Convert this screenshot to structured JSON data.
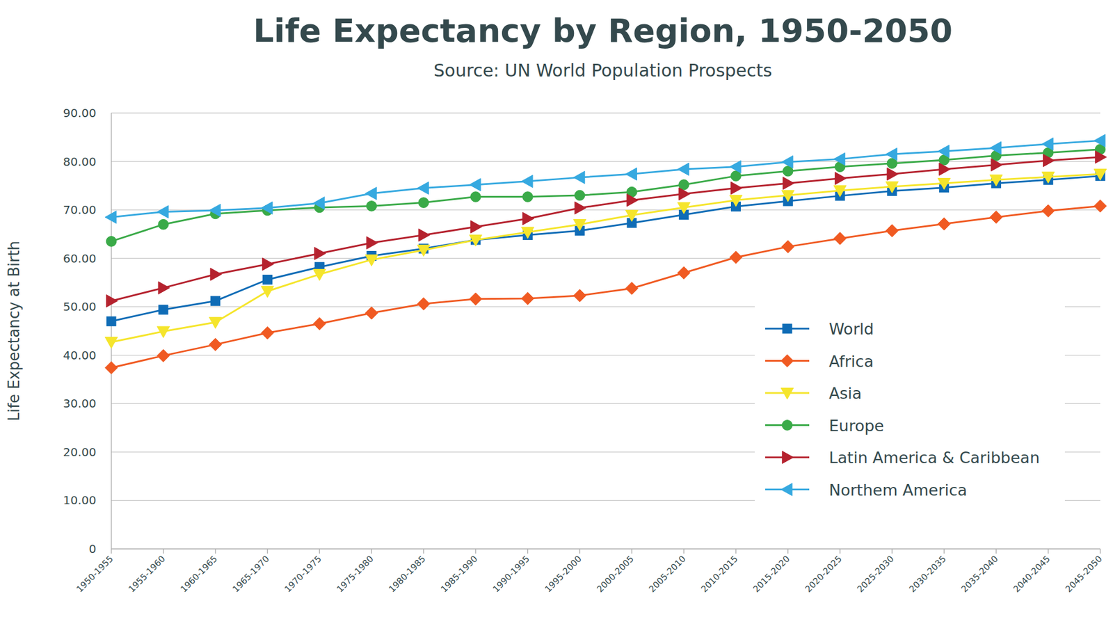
{
  "chart_data": {
    "type": "line",
    "title": "Life Expectancy by Region, 1950-2050",
    "subtitle": "Source: UN World Population Prospects",
    "y_label": "Life Expectancy at Birth",
    "categories": [
      "1950-1955",
      "1955-1960",
      "1960-1965",
      "1965-1970",
      "1970-1975",
      "1975-1980",
      "1980-1985",
      "1985-1990",
      "1990-1995",
      "1995-2000",
      "2000-2005",
      "2005-2010",
      "2010-2015",
      "2015-2020",
      "2020-2025",
      "2025-2030",
      "2030-2035",
      "2035-2040",
      "2040-2045",
      "2045-2050"
    ],
    "series": [
      {
        "name": "World",
        "color": "#0f6cb6",
        "marker": "square",
        "line_style": "solid",
        "values": [
          47.0,
          49.4,
          51.2,
          55.6,
          58.2,
          60.5,
          62.0,
          63.8,
          64.8,
          65.7,
          67.3,
          69.0,
          70.7,
          71.8,
          72.9,
          73.9,
          74.6,
          75.5,
          76.2,
          77.0
        ]
      },
      {
        "name": "Africa",
        "color": "#f05a22",
        "marker": "diamond",
        "line_style": "solid",
        "values": [
          37.4,
          39.9,
          42.2,
          44.6,
          46.5,
          48.7,
          50.6,
          51.6,
          51.7,
          52.3,
          53.8,
          57.0,
          60.2,
          62.4,
          64.1,
          65.7,
          67.1,
          68.5,
          69.8,
          70.8
        ]
      },
      {
        "name": "Asia",
        "color": "#f5e52c",
        "marker": "triangle-down",
        "line_style": "solid",
        "values": [
          42.7,
          44.9,
          46.8,
          53.2,
          56.7,
          59.7,
          61.7,
          63.8,
          65.4,
          67.0,
          68.9,
          70.5,
          72.0,
          73.0,
          74.0,
          74.8,
          75.5,
          76.2,
          76.8,
          77.4
        ]
      },
      {
        "name": "Europe",
        "color": "#3aaa48",
        "marker": "circle",
        "line_style": "solid",
        "values": [
          63.5,
          67.0,
          69.2,
          69.9,
          70.5,
          70.8,
          71.5,
          72.7,
          72.7,
          73.0,
          73.7,
          75.2,
          77.0,
          78.0,
          78.9,
          79.6,
          80.3,
          81.2,
          81.8,
          82.5
        ]
      },
      {
        "name": "Latin America & Caribbean",
        "color": "#b5222e",
        "marker": "triangle-right",
        "line_style": "solid",
        "values": [
          51.2,
          53.9,
          56.7,
          58.8,
          61.0,
          63.2,
          64.8,
          66.5,
          68.2,
          70.4,
          72.0,
          73.3,
          74.5,
          75.5,
          76.5,
          77.4,
          78.4,
          79.3,
          80.2,
          80.9
        ]
      },
      {
        "name": "Northem America",
        "color": "#36a9e0",
        "marker": "triangle-left",
        "line_style": "solid",
        "values": [
          68.5,
          69.6,
          69.9,
          70.4,
          71.4,
          73.4,
          74.5,
          75.2,
          75.9,
          76.7,
          77.4,
          78.4,
          78.9,
          79.9,
          80.5,
          81.5,
          82.1,
          82.8,
          83.6,
          84.3
        ]
      }
    ],
    "ylim": [
      0,
      90
    ],
    "yticks": [
      0,
      {
        "value": 10,
        "label": "10.00"
      },
      {
        "value": 20,
        "label": "20.00"
      },
      {
        "value": 30,
        "label": "30.00"
      },
      {
        "value": 40,
        "label": "40.00"
      },
      {
        "value": 50,
        "label": "50.00"
      },
      {
        "value": 60,
        "label": "60.00"
      },
      {
        "value": 70,
        "label": "70.00"
      },
      {
        "value": 80,
        "label": "80.00"
      },
      {
        "value": 90,
        "label": "90.00"
      }
    ],
    "grid": true,
    "legend": "right"
  }
}
